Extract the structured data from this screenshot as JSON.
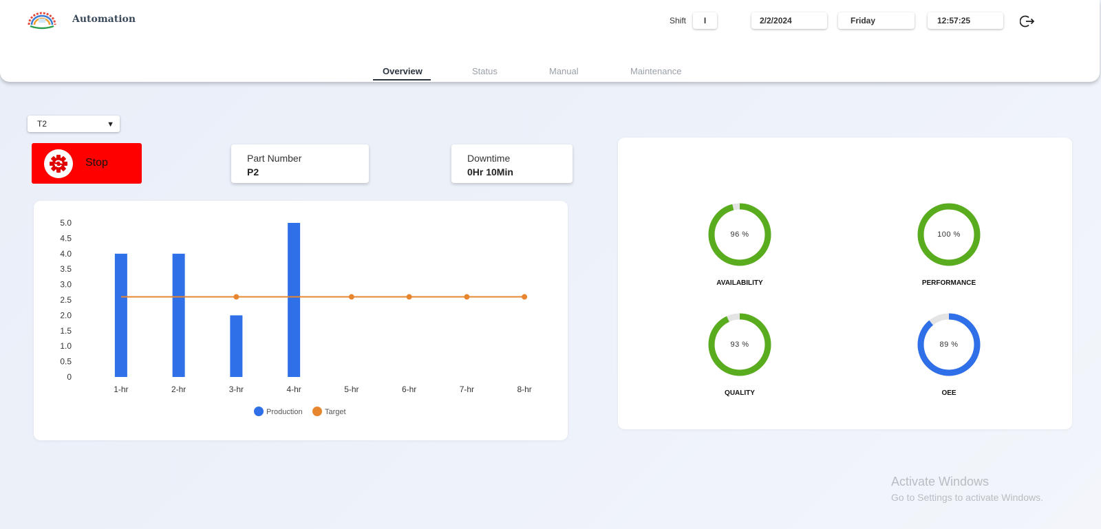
{
  "header": {
    "brand": "Automation",
    "shift_label": "Shift",
    "shift_value": "I",
    "date": "2/2/2024",
    "day": "Friday",
    "time": "12:57:25",
    "logo_icon": "gear-logo-icon",
    "logout_icon": "logout-icon"
  },
  "tabs": [
    {
      "label": "Overview",
      "active": true
    },
    {
      "label": "Status",
      "active": false
    },
    {
      "label": "Manual",
      "active": false
    },
    {
      "label": "Maintenance",
      "active": false
    }
  ],
  "machine_select": {
    "value": "T2"
  },
  "stop_button": {
    "label": "Stop",
    "color": "#ff0000",
    "icon": "gear-refresh-icon"
  },
  "part_number": {
    "label": "Part Number",
    "value": "P2"
  },
  "downtime": {
    "label": "Downtime",
    "value": "0Hr 10Min"
  },
  "chart_data": {
    "type": "bar",
    "categories": [
      "1-hr",
      "2-hr",
      "3-hr",
      "4-hr",
      "5-hr",
      "6-hr",
      "7-hr",
      "8-hr"
    ],
    "series": [
      {
        "name": "Production",
        "type": "bar",
        "color": "#2f6fe8",
        "values": [
          4,
          4,
          2,
          5,
          0,
          0,
          0,
          0
        ]
      },
      {
        "name": "Target",
        "type": "line",
        "color": "#e8862f",
        "values": [
          2.6,
          2.6,
          2.6,
          2.6,
          2.6,
          2.6,
          2.6,
          2.6
        ]
      }
    ],
    "yticks": [
      "0",
      "0.5",
      "1.0",
      "1.5",
      "2.0",
      "2.5",
      "3.0",
      "3.5",
      "4.0",
      "4.5",
      "5.0"
    ],
    "ylim": [
      0,
      5
    ],
    "grid": false,
    "legend": "bottom-center"
  },
  "kpis": [
    {
      "label": "AVAILABILITY",
      "value": 96,
      "text": "96 %",
      "color": "#5aac1f"
    },
    {
      "label": "PERFORMANCE",
      "value": 100,
      "text": "100 %",
      "color": "#5aac1f"
    },
    {
      "label": "QUALITY",
      "value": 93,
      "text": "93 %",
      "color": "#5aac1f"
    },
    {
      "label": "OEE",
      "value": 89,
      "text": "89 %",
      "color": "#2f6fe8"
    }
  ],
  "watermark": {
    "line1": "Activate Windows",
    "line2": "Go to Settings to activate Windows."
  }
}
